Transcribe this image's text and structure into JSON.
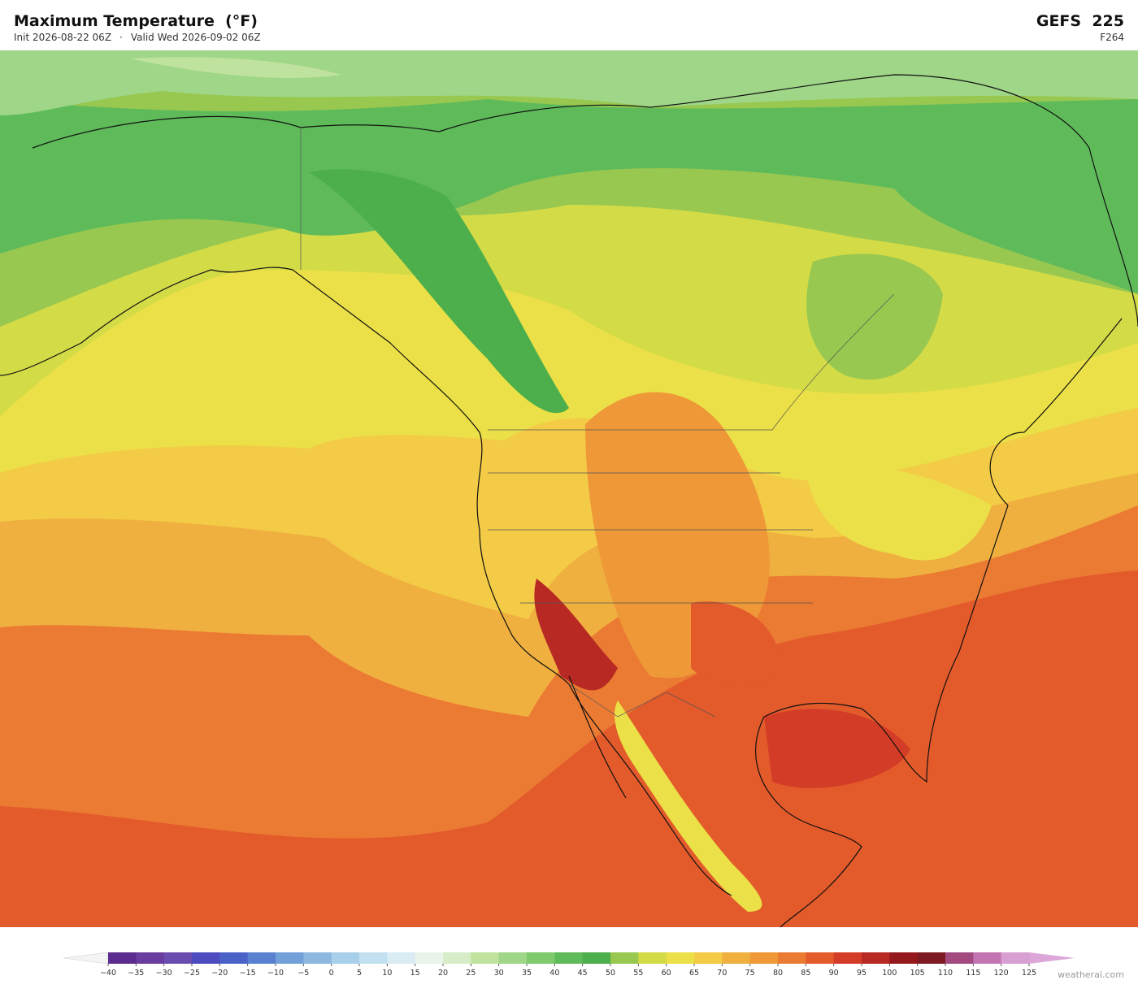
{
  "header": {
    "title": "Maximum Temperature  (°F)",
    "init": "Init 2026-08-22 06Z",
    "separator": "·",
    "valid": "Valid Wed 2026-09-02 06Z",
    "model": "GEFS  225",
    "forecast_hour": "F264"
  },
  "colorbar": {
    "ticks": [
      {
        "value": -40,
        "label": "−40"
      },
      {
        "value": -35,
        "label": "−35"
      },
      {
        "value": -30,
        "label": "−30"
      },
      {
        "value": -25,
        "label": "−25"
      },
      {
        "value": -20,
        "label": "−20"
      },
      {
        "value": -15,
        "label": "−15"
      },
      {
        "value": -10,
        "label": "−10"
      },
      {
        "value": -5,
        "label": "−5"
      },
      0,
      5,
      10,
      15,
      20,
      25,
      30,
      35,
      40,
      45,
      50,
      55,
      60,
      65,
      70,
      75,
      80,
      85,
      90,
      95,
      100,
      105,
      110,
      115,
      120,
      125
    ],
    "colors": [
      "#5b2c8e",
      "#6a3c9e",
      "#6b4db0",
      "#4d4cbf",
      "#4a62c8",
      "#5a80d0",
      "#72a0d8",
      "#8cb8e0",
      "#a8cfe9",
      "#c2e0ef",
      "#d9ecf3",
      "#e8f4ea",
      "#d6edc8",
      "#bfe39e",
      "#9fd687",
      "#7fca6d",
      "#5fbb5a",
      "#4caf4b",
      "#98c850",
      "#d3db47",
      "#ebe047",
      "#f3cb46",
      "#f0b03f",
      "#ef9837",
      "#eb7b33",
      "#e35a2b",
      "#d33d27",
      "#b72922",
      "#95181c",
      "#7e1a22",
      "#a24a80",
      "#c275b2",
      "#d8a0d2"
    ],
    "under_color": "#f4f4f4",
    "over_color": "#dca6d8"
  },
  "footer": {
    "watermark": "weatherai.com"
  }
}
